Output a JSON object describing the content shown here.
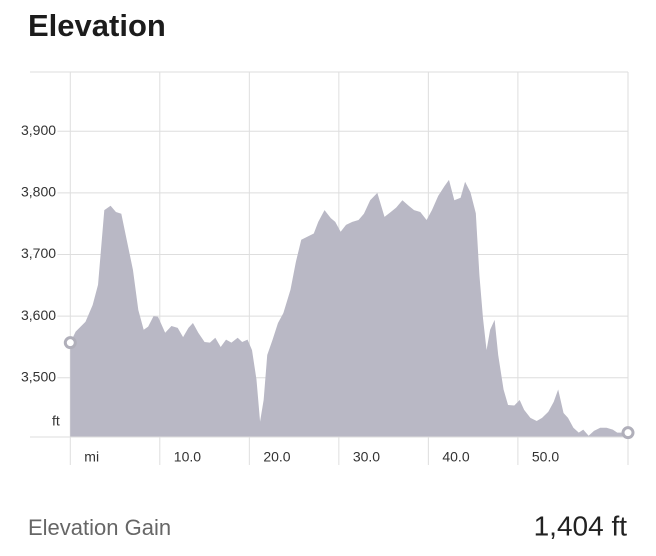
{
  "title": "Elevation",
  "chart_data": {
    "type": "area",
    "x_label": "mi",
    "y_label": "ft",
    "x": [
      0,
      0.6,
      1.7,
      2.5,
      3.1,
      3.8,
      4.5,
      5.1,
      5.7,
      6.3,
      7.0,
      7.6,
      8.2,
      8.7,
      9.3,
      9.8,
      10.6,
      11.3,
      12.0,
      12.6,
      13.2,
      13.7,
      14.3,
      15.0,
      15.6,
      16.2,
      16.8,
      17.4,
      18.0,
      18.7,
      19.2,
      19.8,
      20.3,
      20.8,
      21.2,
      21.6,
      22.0,
      22.6,
      23.2,
      23.8,
      24.6,
      25.2,
      25.8,
      26.5,
      27.2,
      27.7,
      28.4,
      29.1,
      29.6,
      30.2,
      30.8,
      31.5,
      32.2,
      32.8,
      33.5,
      34.3,
      35.1,
      35.8,
      36.4,
      37.1,
      37.8,
      38.4,
      39.1,
      39.8,
      40.4,
      41.1,
      41.8,
      42.3,
      42.9,
      43.6,
      44.1,
      44.7,
      45.3,
      45.7,
      46.1,
      46.5,
      46.9,
      47.4,
      47.8,
      48.4,
      48.9,
      49.6,
      50.2,
      50.7,
      51.4,
      52.1,
      52.7,
      53.4,
      54.0,
      54.5,
      55.1,
      55.6,
      56.2,
      56.8,
      57.3,
      57.9,
      58.5,
      59.2,
      59.9,
      60.6,
      61.1,
      62.3
    ],
    "values": [
      3557,
      3575,
      3591,
      3618,
      3651,
      3772,
      3779,
      3769,
      3766,
      3724,
      3675,
      3610,
      3578,
      3583,
      3600,
      3599,
      3573,
      3584,
      3581,
      3566,
      3581,
      3589,
      3573,
      3558,
      3557,
      3565,
      3550,
      3562,
      3557,
      3565,
      3558,
      3562,
      3545,
      3497,
      3429,
      3464,
      3537,
      3562,
      3589,
      3605,
      3643,
      3688,
      3724,
      3729,
      3734,
      3753,
      3772,
      3759,
      3753,
      3737,
      3748,
      3753,
      3756,
      3766,
      3788,
      3800,
      3761,
      3769,
      3776,
      3788,
      3779,
      3772,
      3769,
      3756,
      3772,
      3795,
      3811,
      3821,
      3788,
      3792,
      3818,
      3801,
      3767,
      3667,
      3597,
      3545,
      3578,
      3594,
      3537,
      3481,
      3456,
      3455,
      3464,
      3448,
      3435,
      3430,
      3435,
      3445,
      3461,
      3481,
      3443,
      3435,
      3419,
      3411,
      3416,
      3406,
      3414,
      3419,
      3419,
      3416,
      3411,
      3411
    ],
    "color": "#b9b8c5",
    "xlim": [
      -4.5,
      62.3
    ],
    "ylim": [
      3404,
      3996
    ],
    "xticks": [
      {
        "value": 0,
        "label": "mi"
      },
      {
        "value": 10,
        "label": "10.0"
      },
      {
        "value": 20,
        "label": "20.0"
      },
      {
        "value": 30,
        "label": "30.0"
      },
      {
        "value": 40,
        "label": "40.0"
      },
      {
        "value": 50,
        "label": "50.0"
      }
    ],
    "yticks": [
      {
        "value": 3500,
        "label": "3,500"
      },
      {
        "value": 3600,
        "label": "3,600"
      },
      {
        "value": 3700,
        "label": "3,700"
      },
      {
        "value": 3800,
        "label": "3,800"
      },
      {
        "value": 3900,
        "label": "3,900"
      }
    ],
    "grid": true
  },
  "stat": {
    "label": "Elevation Gain",
    "value": "1,404 ft"
  }
}
